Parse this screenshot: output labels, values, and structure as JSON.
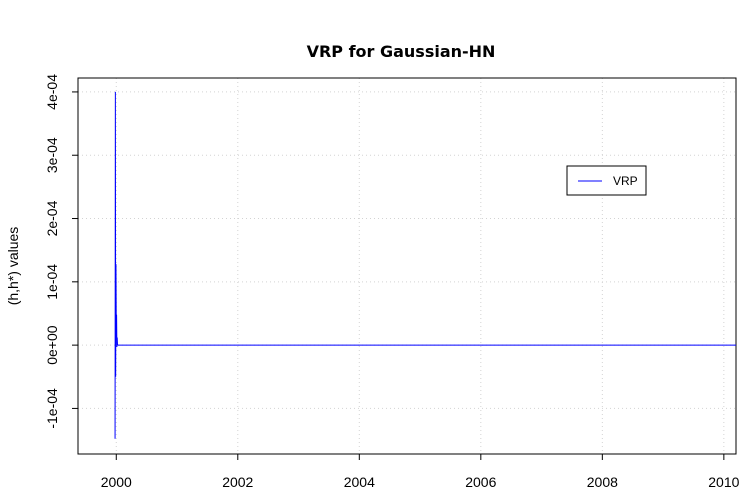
{
  "chart_data": {
    "type": "line",
    "title": "VRP for  Gaussian-HN",
    "xlabel": "",
    "ylabel": "(h,h*) values",
    "xlim": [
      1999.37,
      2010.2
    ],
    "ylim": [
      -0.000172,
      0.000422
    ],
    "x_ticks": [
      2000,
      2002,
      2004,
      2006,
      2008,
      2010
    ],
    "x_tick_labels": [
      "2000",
      "2002",
      "2004",
      "2006",
      "2008",
      "2010"
    ],
    "y_ticks": [
      -0.0001,
      0,
      0.0001,
      0.0002,
      0.0003,
      0.0004
    ],
    "y_tick_labels": [
      "-1e-04",
      "0e+00",
      "1e-04",
      "2e-04",
      "3e-04",
      "4e-04"
    ],
    "grid": true,
    "legend": {
      "position": "top-right",
      "entries": [
        "VRP"
      ]
    },
    "series": [
      {
        "name": "VRP",
        "color": "#0000ff",
        "x": [
          1999.98,
          1999.985,
          1999.99,
          1999.995,
          2000.0,
          2000.005,
          2000.01,
          2000.015,
          2000.02,
          2000.03,
          2000.04,
          2000.06,
          2000.1,
          2001.0,
          2002.0,
          2003.0,
          2004.0,
          2005.0,
          2006.0,
          2007.0,
          2008.0,
          2009.0,
          2010.0,
          2010.2
        ],
        "y": [
          -0.000148,
          0.0004,
          -5e-05,
          0.000128,
          3e-05,
          4.8e-05,
          -3e-06,
          1.2e-05,
          5e-07,
          0.0,
          0.0,
          0.0,
          0.0,
          0.0,
          0.0,
          0.0,
          0.0,
          0.0,
          0.0,
          0.0,
          0.0,
          0.0,
          0.0,
          0.0
        ]
      }
    ]
  }
}
